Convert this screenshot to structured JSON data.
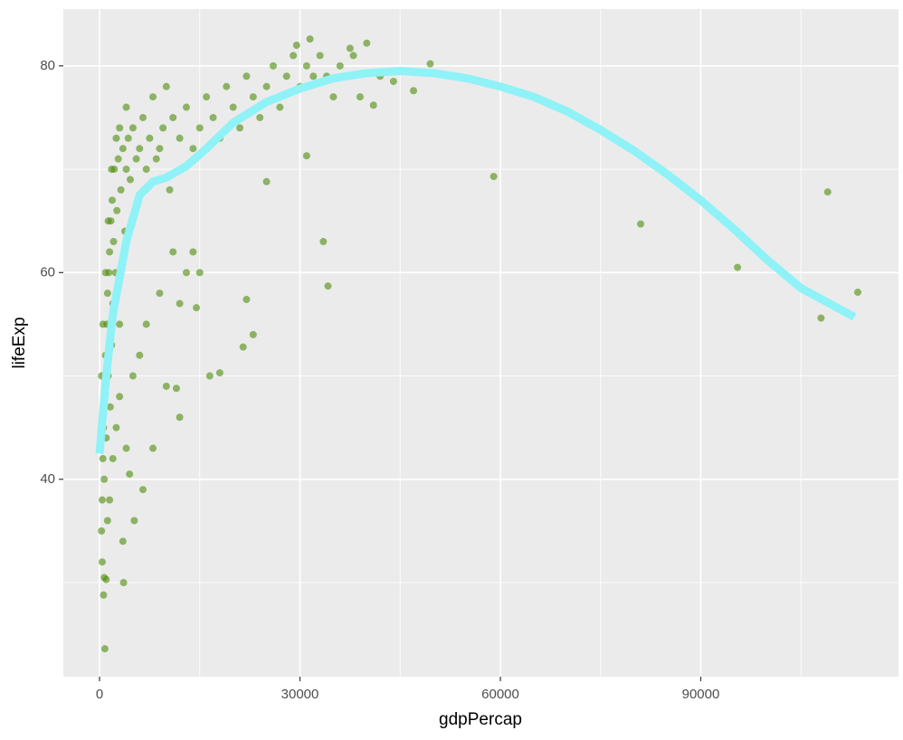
{
  "chart_data": {
    "type": "scatter",
    "x_label": "gdpPercap",
    "y_label": "lifeExp",
    "xlim": [
      -5418,
      119594
    ],
    "ylim": [
      20.9,
      85.5
    ],
    "xticks": [
      0,
      30000,
      60000,
      90000
    ],
    "yticks": [
      40,
      60,
      80
    ],
    "xminor": [
      15000,
      45000,
      75000,
      105000
    ],
    "yminor": [
      30,
      50,
      70
    ],
    "grid": true,
    "points": {
      "color": "#4c8c0a",
      "x": [
        300,
        400,
        500,
        600,
        700,
        800,
        900,
        1000,
        1100,
        1200,
        1300,
        1400,
        1500,
        1600,
        1700,
        1800,
        1900,
        2000,
        2100,
        2200,
        2400,
        2600,
        2800,
        3000,
        3200,
        3500,
        3800,
        4000,
        4300,
        4600,
        5000,
        5500,
        6000,
        6500,
        7000,
        7500,
        8000,
        8500,
        9000,
        9500,
        10000,
        10500,
        11000,
        12000,
        13000,
        14000,
        15000,
        16000,
        17000,
        18000,
        19000,
        20000,
        21000,
        22000,
        23000,
        24000,
        25000,
        26000,
        27000,
        28000,
        29000,
        30000,
        31000,
        32000,
        33000,
        34000,
        35000,
        36000,
        38000,
        39000,
        42000,
        44000,
        400,
        700,
        1200,
        1500,
        2000,
        2500,
        3000,
        3500,
        4000,
        5000,
        6000,
        7000,
        8000,
        9000,
        10000,
        11000,
        12000,
        13000,
        14000,
        15000,
        300,
        500,
        900,
        1300,
        1800,
        2500,
        3000,
        4000,
        59000,
        81000,
        95500,
        109000,
        108000,
        113500,
        33500,
        34200,
        22000,
        23000,
        21500,
        18000,
        16500,
        800,
        600,
        3600,
        1000,
        47000,
        49500,
        40000,
        31500,
        29500,
        37500,
        41000,
        31000,
        25000,
        14500,
        12000,
        11500,
        5200,
        4500,
        6500
      ],
      "y": [
        35,
        38,
        42,
        45,
        40,
        48,
        52,
        44,
        55,
        58,
        50,
        60,
        62,
        47,
        65,
        53,
        67,
        57,
        63,
        70,
        60,
        66,
        71,
        55,
        68,
        72,
        64,
        70,
        73,
        69,
        74,
        71,
        72,
        75,
        70,
        73,
        77,
        71,
        72,
        74,
        78,
        68,
        75,
        73,
        76,
        72,
        74,
        77,
        75,
        73,
        78,
        76,
        74,
        79,
        77,
        75,
        78,
        80,
        76,
        79,
        81,
        78,
        80,
        79,
        81,
        79,
        77,
        80,
        81,
        77,
        79,
        78.5,
        32,
        30.5,
        36,
        38,
        42,
        45,
        48,
        34,
        43,
        50,
        52,
        55,
        43,
        58,
        49,
        62,
        57,
        60,
        62,
        60,
        50,
        55,
        60,
        65,
        70,
        73,
        74,
        76,
        69.3,
        64.7,
        60.5,
        67.8,
        55.6,
        58.1,
        63,
        58.7,
        57.4,
        54,
        52.8,
        50.3,
        50,
        23.6,
        28.8,
        30,
        30.3,
        77.6,
        80.2,
        82.2,
        82.6,
        82,
        81.7,
        76.2,
        71.3,
        68.8,
        56.6,
        46,
        48.8,
        36,
        40.5,
        39
      ]
    },
    "smooth": {
      "color": "#8ff2f7",
      "x": [
        0,
        1000,
        2000,
        4000,
        6000,
        8000,
        10000,
        13000,
        16000,
        20000,
        25000,
        30000,
        35000,
        40000,
        45000,
        50000,
        55000,
        60000,
        65000,
        70000,
        75000,
        80000,
        85000,
        90000,
        95000,
        100000,
        105000,
        113000
      ],
      "y": [
        42.5,
        50,
        56,
        63,
        67.5,
        68.8,
        69.2,
        70.3,
        72,
        74.5,
        76.5,
        77.8,
        78.8,
        79.3,
        79.5,
        79.3,
        78.8,
        78,
        77,
        75.6,
        73.8,
        71.8,
        69.5,
        67,
        64.2,
        61.2,
        58.5,
        55.7
      ]
    }
  }
}
